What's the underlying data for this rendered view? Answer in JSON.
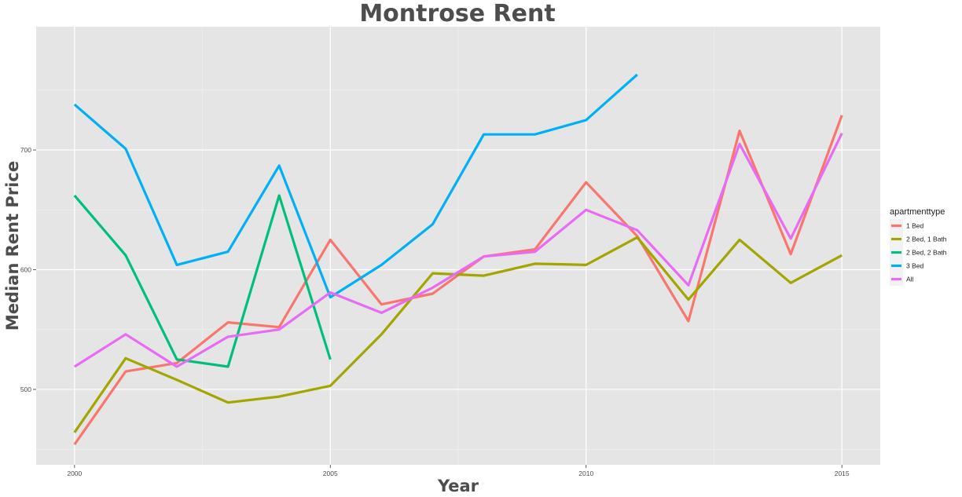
{
  "chart_data": {
    "type": "line",
    "title": "Montrose Rent",
    "xlabel": "Year",
    "ylabel": "Median Rent Price",
    "xlim": [
      1999.25,
      2015.75
    ],
    "ylim": [
      437,
      803
    ],
    "x_ticks": [
      2000,
      2005,
      2010,
      2015
    ],
    "y_ticks": [
      500,
      600,
      700
    ],
    "grid": true,
    "legend": {
      "title": "apartmenttype",
      "placement": "right"
    },
    "series": [
      {
        "name": "1 Bed",
        "color": "#F8766D",
        "x": [
          2000,
          2001,
          2002,
          2003,
          2004,
          2005,
          2006,
          2007,
          2008,
          2009,
          2010,
          2011,
          2012,
          2013,
          2014,
          2015
        ],
        "y": [
          454,
          515,
          522,
          556,
          552,
          625,
          571,
          580,
          611,
          617,
          673,
          628,
          557,
          716,
          613,
          729
        ]
      },
      {
        "name": "2 Bed, 1 Bath",
        "color": "#A3A500",
        "x": [
          2000,
          2001,
          2002,
          2003,
          2004,
          2005,
          2006,
          2007,
          2008,
          2009,
          2010,
          2011,
          2012,
          2013,
          2014,
          2015
        ],
        "y": [
          464,
          526,
          508,
          489,
          494,
          503,
          546,
          597,
          595,
          605,
          604,
          627,
          575,
          625,
          589,
          612
        ]
      },
      {
        "name": "2 Bed, 2 Bath",
        "color": "#00BF7D",
        "x": [
          2000,
          2001,
          2002,
          2003,
          2004,
          2005
        ],
        "y": [
          662,
          612,
          525,
          519,
          662,
          525
        ]
      },
      {
        "name": "3 Bed",
        "color": "#00B0F6",
        "x": [
          2000,
          2001,
          2002,
          2003,
          2004,
          2005,
          2006,
          2007,
          2008,
          2009,
          2010,
          2011
        ],
        "y": [
          738,
          701,
          604,
          615,
          687,
          577,
          604,
          638,
          713,
          713,
          725,
          763
        ]
      },
      {
        "name": "All",
        "color": "#E76BF3",
        "x": [
          2000,
          2001,
          2002,
          2003,
          2004,
          2005,
          2006,
          2007,
          2008,
          2009,
          2010,
          2011,
          2012,
          2013,
          2014,
          2015
        ],
        "y": [
          519,
          546,
          519,
          544,
          550,
          581,
          564,
          585,
          611,
          615,
          650,
          633,
          587,
          705,
          626,
          714
        ]
      }
    ]
  }
}
